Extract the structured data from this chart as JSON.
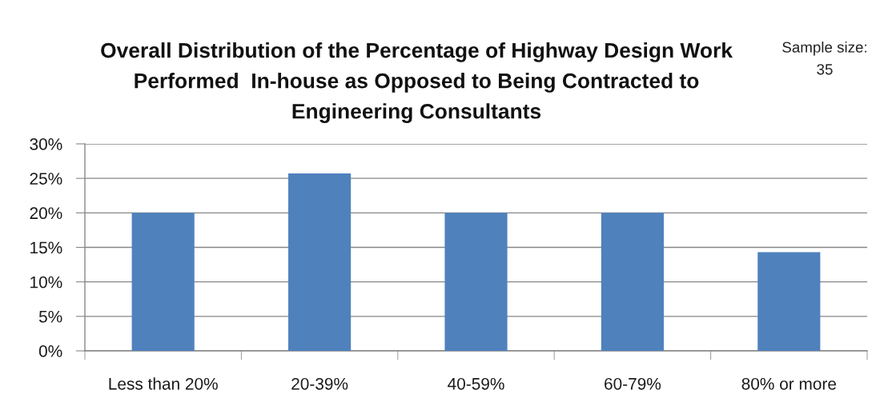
{
  "chart_data": {
    "type": "bar",
    "title": "Overall Distribution of the Percentage of Highway Design Work\nPerformed  In-house as Opposed to Being Contracted to\nEngineering Consultants",
    "annotations": [
      "Sample size:\n35"
    ],
    "categories": [
      "Less than 20%",
      "20-39%",
      "40-59%",
      "60-79%",
      "80% or more"
    ],
    "values": [
      20,
      25.7,
      20,
      20,
      14.3
    ],
    "color": "#4f81bd",
    "ylim": [
      0,
      30
    ],
    "yticks": [
      {
        "value": 0,
        "label": "0%"
      },
      {
        "value": 5,
        "label": "5%"
      },
      {
        "value": 10,
        "label": "10%"
      },
      {
        "value": 15,
        "label": "15%"
      },
      {
        "value": 20,
        "label": "20%"
      },
      {
        "value": 25,
        "label": "25%"
      },
      {
        "value": 30,
        "label": "30%"
      }
    ],
    "grid": "y"
  }
}
